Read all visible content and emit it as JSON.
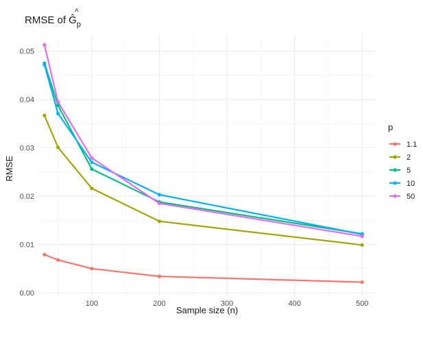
{
  "chart_data": {
    "type": "line",
    "title": "RMSE of Ĝ",
    "title_subscript": "p",
    "xlabel": "Sample size (n)",
    "ylabel": "RMSE",
    "xlim": [
      20,
      520
    ],
    "ylim": [
      -0.0007,
      0.0535
    ],
    "x_ticks": [
      100,
      200,
      300,
      400,
      500
    ],
    "y_ticks": [
      0.0,
      0.01,
      0.02,
      0.03,
      0.04,
      0.05
    ],
    "y_tick_labels": [
      "0.00",
      "0.01",
      "0.02",
      "0.03",
      "0.04",
      "0.05"
    ],
    "grid": true,
    "legend": {
      "title": "p",
      "position": "right"
    },
    "x": [
      30,
      50,
      100,
      200,
      500
    ],
    "series": [
      {
        "name": "1.1",
        "color": "#F8766D",
        "values": [
          0.0079,
          0.0068,
          0.005,
          0.0034,
          0.0022
        ]
      },
      {
        "name": "2",
        "color": "#A3A500",
        "values": [
          0.0367,
          0.0301,
          0.0216,
          0.0148,
          0.0099
        ]
      },
      {
        "name": "5",
        "color": "#00BF7D",
        "values": [
          0.0475,
          0.0388,
          0.0256,
          0.0188,
          0.0122
        ]
      },
      {
        "name": "10",
        "color": "#00B0F6",
        "values": [
          0.0472,
          0.0371,
          0.027,
          0.0203,
          0.0121
        ]
      },
      {
        "name": "50",
        "color": "#E76BF3",
        "values": [
          0.0513,
          0.0395,
          0.0279,
          0.0185,
          0.0117
        ]
      }
    ]
  }
}
